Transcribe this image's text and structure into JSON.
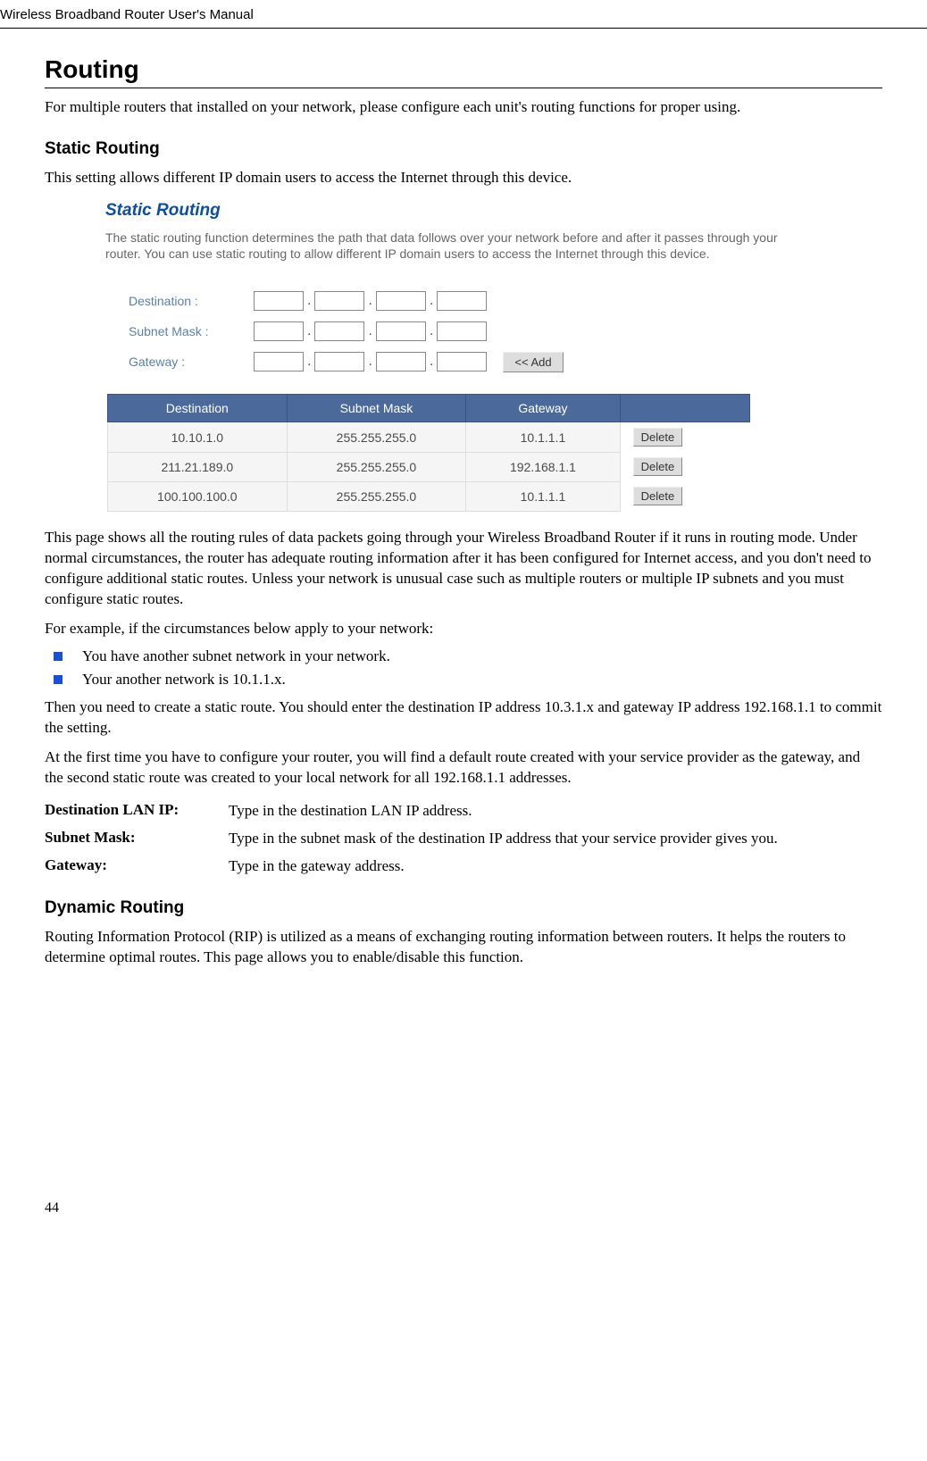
{
  "header": {
    "title": "Wireless Broadband Router User's Manual"
  },
  "section": {
    "title": "Routing",
    "intro": "For multiple routers that installed on your network, please configure each unit's routing functions for proper using."
  },
  "static_routing": {
    "title": "Static Routing",
    "intro": "This setting allows different IP domain users to access the Internet through this device.",
    "shot": {
      "title": "Static Routing",
      "desc": "The static routing function determines the path that data follows over your network before and after it passes through your router. You can use static routing to allow different IP domain users to access the Internet through this device.",
      "form": {
        "destination_label": "Destination :",
        "subnet_label": "Subnet Mask :",
        "gateway_label": "Gateway :",
        "add_button": "<< Add"
      },
      "table": {
        "columns": [
          "Destination",
          "Subnet Mask",
          "Gateway"
        ],
        "rows": [
          {
            "dest": "10.10.1.0",
            "mask": "255.255.255.0",
            "gw": "10.1.1.1"
          },
          {
            "dest": "211.21.189.0",
            "mask": "255.255.255.0",
            "gw": "192.168.1.1"
          },
          {
            "dest": "100.100.100.0",
            "mask": "255.255.255.0",
            "gw": "10.1.1.1"
          }
        ],
        "delete_label": "Delete",
        "colors": {
          "header_bg": "#4b6a9b",
          "header_text": "#ffffff",
          "row_bg": "#f5f5f5",
          "row_text": "#4a4a4a"
        }
      }
    },
    "explain1": "This page shows all the routing rules of data packets going through your Wireless Broadband Router if it runs in routing mode. Under normal circumstances, the router has adequate routing information after it has been configured for Internet access, and you don't need to configure additional static routes. Unless your network is unusual case such as multiple routers or multiple IP subnets and you must configure static routes.",
    "explain2": "For example, if the circumstances below apply to your network:",
    "bullets": [
      "You have another subnet network in your network.",
      "Your another network is 10.1.1.x."
    ],
    "explain3": "Then you need to create a static route. You should enter the destination IP address 10.3.1.x and gateway IP address 192.168.1.1 to commit the setting.",
    "explain4": "At the first time you have to configure your router, you will find a default route created with your service provider as the gateway, and the second static route was created to your local network for all 192.168.1.1 addresses.",
    "defs": [
      {
        "term": "Destination LAN IP:",
        "desc": "Type in the destination LAN IP address."
      },
      {
        "term": "Subnet Mask:",
        "desc": "Type in the subnet mask of the destination IP address that your service provider gives you."
      },
      {
        "term": "Gateway:",
        "desc": "Type in the gateway address."
      }
    ]
  },
  "dynamic_routing": {
    "title": "Dynamic Routing",
    "intro": "Routing Information Protocol (RIP) is utilized as a means of exchanging routing information between routers. It helps the routers to determine optimal routes. This page allows you to enable/disable this function."
  },
  "page_number": "44",
  "bullet_color": "#1b4fd1"
}
